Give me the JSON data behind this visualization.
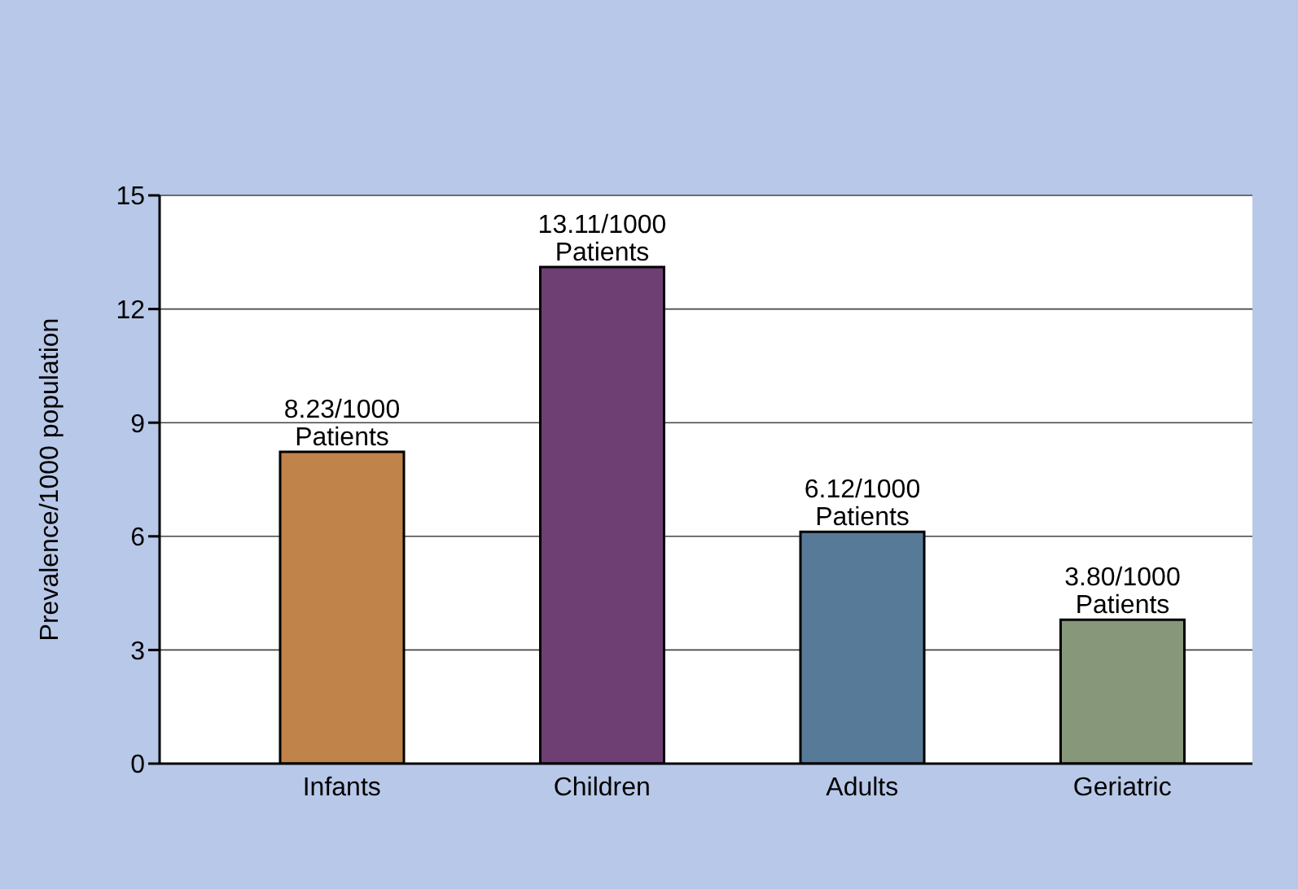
{
  "chart_data": {
    "type": "bar",
    "ylabel": "Prevalence/1000 population",
    "categories": [
      "Infants",
      "Children",
      "Adults",
      "Geriatric"
    ],
    "values": [
      8.23,
      13.11,
      6.12,
      3.8
    ],
    "colors": [
      "#c0834a",
      "#6e3f73",
      "#587a99",
      "#87977a"
    ],
    "value_labels": [
      "8.23/1000 Patients",
      "13.11/1000 Patients",
      "6.12/1000 Patients",
      "3.80/1000 Patients"
    ],
    "ylim": [
      0,
      15
    ],
    "yticks": [
      0,
      3,
      6,
      9,
      12,
      15
    ],
    "grid": "y",
    "legend": false
  }
}
